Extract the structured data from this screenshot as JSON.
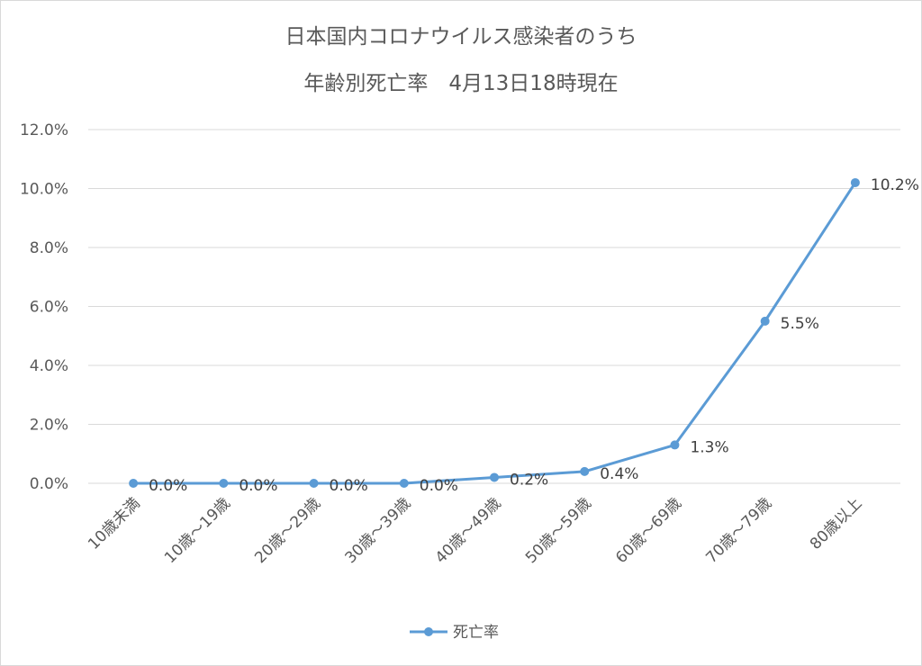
{
  "chart_data": {
    "type": "line",
    "title": "日本国内コロナウイルス感染者のうち",
    "subtitle": "年齢別死亡率　4月13日18時現在",
    "categories": [
      "10歳未満",
      "10歳～19歳",
      "20歳～29歳",
      "30歳～39歳",
      "40歳～49歳",
      "50歳～59歳",
      "60歳～69歳",
      "70歳～79歳",
      "80歳以上"
    ],
    "series": [
      {
        "name": "死亡率",
        "values": [
          0.0,
          0.0,
          0.0,
          0.0,
          0.2,
          0.4,
          1.3,
          5.5,
          10.2
        ],
        "labels": [
          "0.0%",
          "0.0%",
          "0.0%",
          "0.0%",
          "0.2%",
          "0.4%",
          "1.3%",
          "5.5%",
          "10.2%"
        ],
        "color": "#5b9bd5"
      }
    ],
    "y_ticks": [
      "0.0%",
      "2.0%",
      "4.0%",
      "6.0%",
      "8.0%",
      "10.0%",
      "12.0%"
    ],
    "ylim": [
      0,
      12
    ],
    "grid": true,
    "legend_position": "bottom"
  }
}
